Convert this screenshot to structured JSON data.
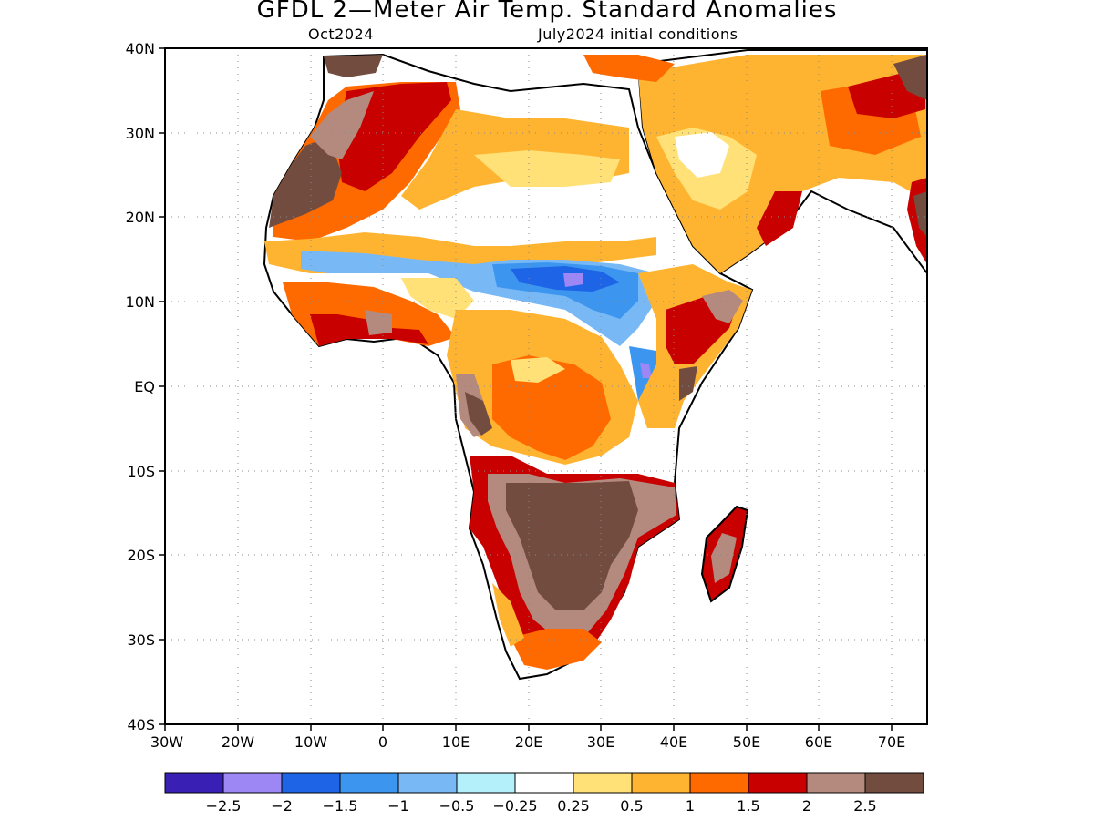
{
  "title": "GFDL 2—Meter Air Temp. Standard Anomalies",
  "subtitle_left": "Oct2024",
  "subtitle_right": "July2024 initial conditions",
  "lat_labels": [
    "40N",
    "30N",
    "20N",
    "10N",
    "EQ",
    "10S",
    "20S",
    "30S",
    "40S"
  ],
  "lon_labels": [
    "30W",
    "20W",
    "10W",
    "0",
    "10E",
    "20E",
    "30E",
    "40E",
    "50E",
    "60E",
    "70E"
  ],
  "legend": {
    "colors": [
      "#3a1fb5",
      "#9c87f5",
      "#1e64e6",
      "#3c96f0",
      "#78b9f5",
      "#b4f0fa",
      "#ffffff",
      "#ffe177",
      "#ffb431",
      "#ff6a00",
      "#c80000",
      "#b48a7e",
      "#734c40"
    ],
    "labels": [
      "−2.5",
      "−2",
      "−1.5",
      "−1",
      "−0.5",
      "−0.25",
      "0.25",
      "0.5",
      "1",
      "1.5",
      "2",
      "2.5"
    ]
  }
}
